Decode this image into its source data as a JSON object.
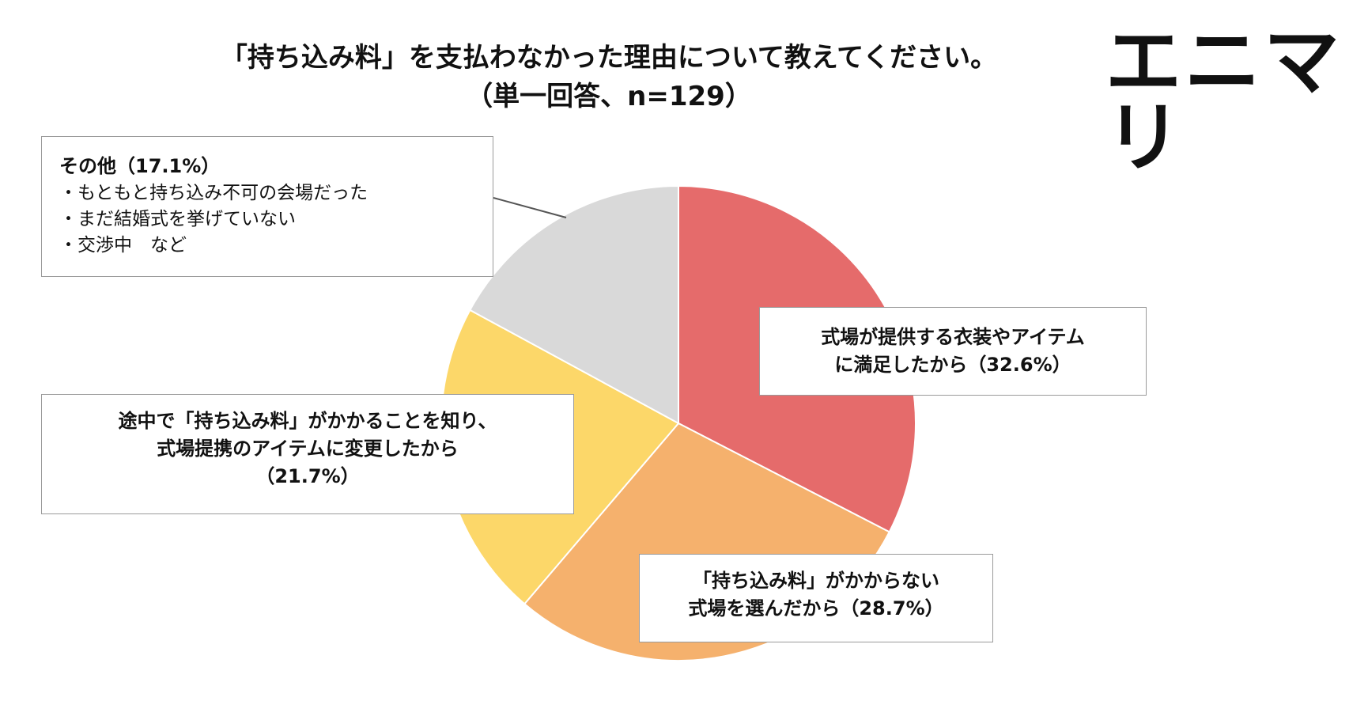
{
  "header": {
    "title_line1": "「持ち込み料」を支払わなかった理由について教えてください。",
    "title_line2": "（単一回答、n=129）",
    "logo": "エニマリ"
  },
  "callouts": {
    "venue": {
      "line1": "式場が提供する衣装やアイテム",
      "line2": "に満足したから（32.6%）"
    },
    "nofee": {
      "line1": "「持ち込み料」がかからない",
      "line2": "式場を選んだから（28.7%）"
    },
    "midway": {
      "line1": "途中で「持ち込み料」がかかることを知り、",
      "line2": "式場提携のアイテムに変更したから",
      "line3": "（21.7%）"
    },
    "other": {
      "heading": "その他（17.1%）",
      "items": [
        "・もともと持ち込み不可の会場だった",
        "・まだ結婚式を挙げていない",
        "・交渉中　など"
      ]
    }
  },
  "chart_data": {
    "type": "pie",
    "title": "「持ち込み料」を支払わなかった理由について教えてください。",
    "subtitle": "（単一回答、n=129）",
    "slices": [
      {
        "label": "式場が提供する衣装やアイテムに満足したから",
        "value": 32.6,
        "color": "#e56b6b"
      },
      {
        "label": "「持ち込み料」がかからない式場を選んだから",
        "value": 28.7,
        "color": "#f5b16d"
      },
      {
        "label": "途中で「持ち込み料」がかかることを知り、式場提携のアイテムに変更したから",
        "value": 21.7,
        "color": "#fcd769"
      },
      {
        "label": "その他",
        "value": 17.1,
        "color": "#d9d9d9"
      }
    ],
    "start": "12 o'clock",
    "direction": "clockwise"
  }
}
